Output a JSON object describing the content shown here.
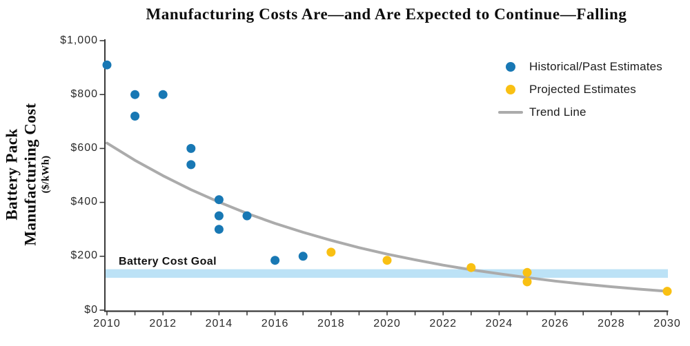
{
  "chart": {
    "y_axis": {
      "label_line1": "Battery Pack",
      "label_line2": "Manufacturing Cost",
      "units": "($/kWh)",
      "ticks": [
        {
          "v": 0,
          "label": "$0"
        },
        {
          "v": 200,
          "label": "$200"
        },
        {
          "v": 400,
          "label": "$400"
        },
        {
          "v": 600,
          "label": "$600"
        },
        {
          "v": 800,
          "label": "$800"
        },
        {
          "v": 1000,
          "label": "$1,000"
        }
      ]
    },
    "x_axis": {
      "tick_years": [
        2010,
        2011,
        2012,
        2013,
        2014,
        2015,
        2016,
        2017,
        2018,
        2019,
        2020,
        2021,
        2022,
        2023,
        2024,
        2025,
        2026,
        2027,
        2028,
        2029,
        2030
      ],
      "labels": [
        {
          "v": 2010,
          "label": "2010"
        },
        {
          "v": 2012,
          "label": "2012"
        },
        {
          "v": 2014,
          "label": "2014"
        },
        {
          "v": 2016,
          "label": "2016"
        },
        {
          "v": 2018,
          "label": "2018"
        },
        {
          "v": 2020,
          "label": "2020"
        },
        {
          "v": 2022,
          "label": "2022"
        },
        {
          "v": 2024,
          "label": "2024"
        },
        {
          "v": 2026,
          "label": "2026"
        },
        {
          "v": 2028,
          "label": "2028"
        },
        {
          "v": 2030,
          "label": "2030"
        }
      ]
    },
    "colors": {
      "axis": "#3A3A3A",
      "tick_text": "#2B2B2B",
      "goal_band": "#BCE2F6"
    }
  },
  "chart_data": {
    "type": "scatter",
    "title": "Manufacturing Costs Are—and Are Expected to Continue—Falling",
    "xlabel": "",
    "ylabel": "Battery Pack Manufacturing Cost ($/kWh)",
    "xlim": [
      2010,
      2030
    ],
    "ylim": [
      0,
      1000
    ],
    "grid": false,
    "legend_position": "upper right",
    "series": [
      {
        "name": "Historical/Past Estimates",
        "type": "scatter",
        "color": "#1878B4",
        "points": [
          [
            2010,
            910
          ],
          [
            2011,
            800
          ],
          [
            2011,
            720
          ],
          [
            2012,
            800
          ],
          [
            2013,
            600
          ],
          [
            2013,
            540
          ],
          [
            2014,
            410
          ],
          [
            2014,
            350
          ],
          [
            2014,
            300
          ],
          [
            2015,
            350
          ],
          [
            2016,
            185
          ],
          [
            2017,
            200
          ]
        ]
      },
      {
        "name": "Projected Estimates",
        "type": "scatter",
        "color": "#F9C013",
        "points": [
          [
            2018,
            215
          ],
          [
            2020,
            185
          ],
          [
            2023,
            158
          ],
          [
            2025,
            140
          ],
          [
            2025,
            105
          ],
          [
            2030,
            70
          ]
        ]
      },
      {
        "name": "Trend Line",
        "type": "line",
        "color": "#ABABAB",
        "points": [
          [
            2010,
            620
          ],
          [
            2011,
            556
          ],
          [
            2012,
            499
          ],
          [
            2013,
            447
          ],
          [
            2014,
            401
          ],
          [
            2015,
            359
          ],
          [
            2016,
            322
          ],
          [
            2017,
            289
          ],
          [
            2018,
            259
          ],
          [
            2019,
            232
          ],
          [
            2020,
            208
          ],
          [
            2021,
            187
          ],
          [
            2022,
            167
          ],
          [
            2023,
            150
          ],
          [
            2024,
            135
          ],
          [
            2025,
            121
          ],
          [
            2026,
            108
          ],
          [
            2027,
            97
          ],
          [
            2028,
            87
          ],
          [
            2029,
            78
          ],
          [
            2030,
            70
          ]
        ]
      }
    ],
    "goal_band": {
      "label": "Battery Cost Goal",
      "ymin": 120,
      "ymax": 152
    }
  }
}
